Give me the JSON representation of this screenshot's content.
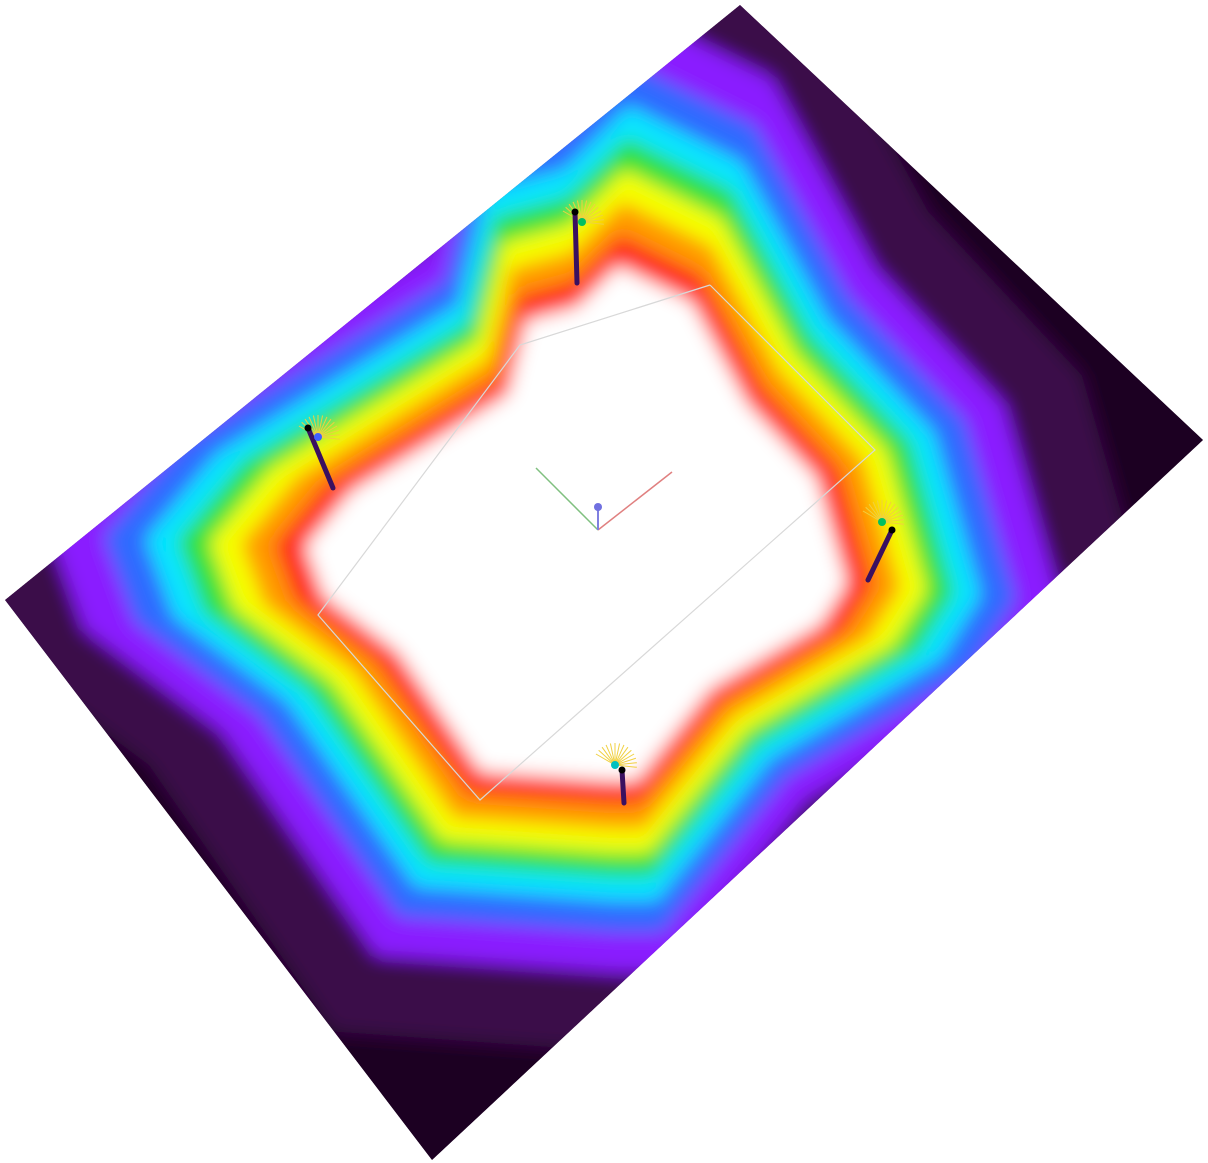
{
  "scene": {
    "kind": "field-strength-heatmap",
    "background": "#ffffff",
    "palette": [
      "#ffffff",
      "#ff2a1a",
      "#ff9a00",
      "#f6ff00",
      "#2ee03a",
      "#00e5ff",
      "#2f6bff",
      "#8a1cff",
      "#3a0a4a",
      "#1a0420"
    ],
    "poles": [
      {
        "id": "pole-top",
        "lamp": "#00c060"
      },
      {
        "id": "pole-left",
        "lamp": "#4060ff"
      },
      {
        "id": "pole-right",
        "lamp": "#00c060"
      },
      {
        "id": "pole-bottom",
        "lamp": "#00c0c0"
      }
    ],
    "origin_marker": {
      "x_axis": "#e06060",
      "y_axis": "#60c060",
      "z_axis": "#6060e0"
    }
  }
}
